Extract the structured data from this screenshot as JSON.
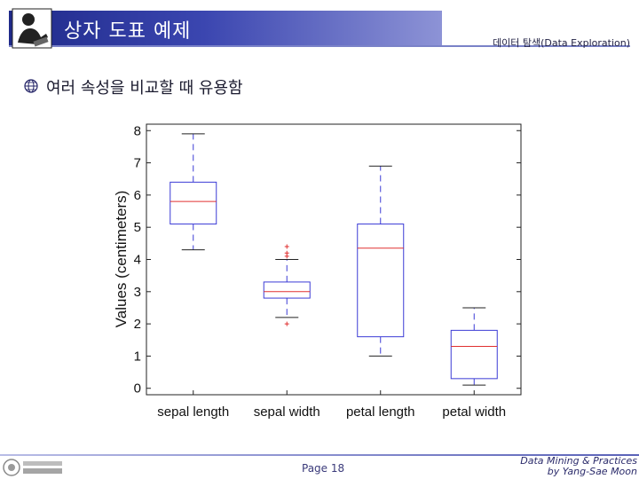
{
  "header": {
    "title": "상자 도표 예제",
    "section": "데이터 탐색(Data Exploration)"
  },
  "bullet": {
    "text": "여러 속성을 비교할 때 유용함"
  },
  "footer": {
    "page": "Page 18",
    "credit_line1": "Data Mining & Practices",
    "credit_line2": "by Yang-Sae Moon"
  },
  "colors": {
    "banner": "#2a348f",
    "box": "#3b3bd6",
    "median": "#e03030",
    "outlier": "#e03030"
  },
  "chart_data": {
    "type": "box",
    "ylabel": "Values (centimeters)",
    "ylim": [
      -0.2,
      8.2
    ],
    "yticks": [
      0,
      1,
      2,
      3,
      4,
      5,
      6,
      7,
      8
    ],
    "categories": [
      "sepal length",
      "sepal width",
      "petal length",
      "petal width"
    ],
    "boxes": [
      {
        "whisker_low": 4.3,
        "q1": 5.1,
        "median": 5.8,
        "q3": 6.4,
        "whisker_high": 7.9,
        "outliers": []
      },
      {
        "whisker_low": 2.2,
        "q1": 2.8,
        "median": 3.0,
        "q3": 3.3,
        "whisker_high": 4.0,
        "outliers": [
          2.0,
          4.1,
          4.2,
          4.4
        ]
      },
      {
        "whisker_low": 1.0,
        "q1": 1.6,
        "median": 4.35,
        "q3": 5.1,
        "whisker_high": 6.9,
        "outliers": []
      },
      {
        "whisker_low": 0.1,
        "q1": 0.3,
        "median": 1.3,
        "q3": 1.8,
        "whisker_high": 2.5,
        "outliers": []
      }
    ]
  }
}
